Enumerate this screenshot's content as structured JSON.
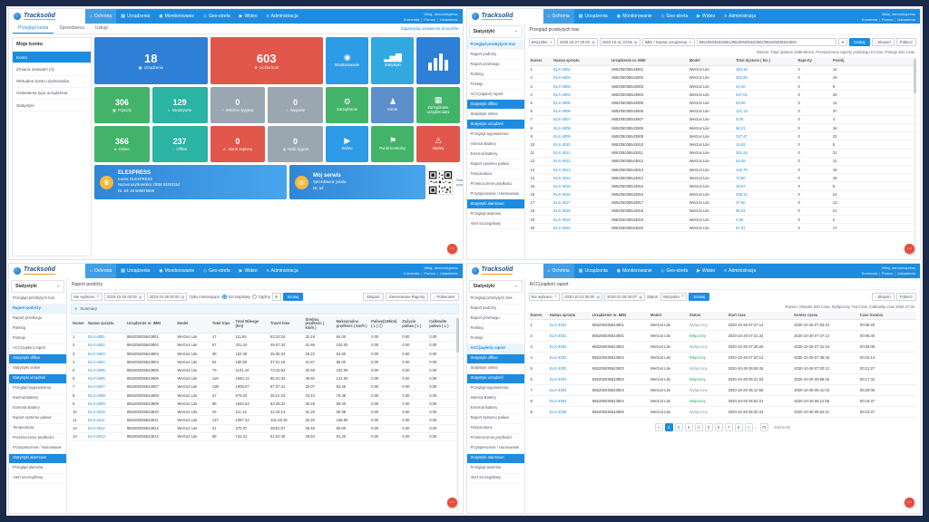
{
  "icons": {
    "caret": "▼",
    "calendar": "▦",
    "plus": "⊕",
    "download": "↓",
    "gear": "⚙",
    "chat": "⋯",
    "collapse": "∨",
    "service": "☏",
    "avatar": "♛",
    "ellipsis": "…",
    "prev": "«",
    "next": "»"
  },
  "chrome": {
    "logo": "Tracksolid",
    "nav": [
      {
        "name": "nav-ochrona",
        "icon": "⌂",
        "label": "Ochrona"
      },
      {
        "name": "nav-urzadzenia",
        "icon": "▦",
        "label": "Urządzenia"
      },
      {
        "name": "nav-monitorowanie",
        "icon": "◉",
        "label": "Monitorowanie"
      },
      {
        "name": "nav-geo-strefa",
        "icon": "◇",
        "label": "Geo-strefa"
      },
      {
        "name": "nav-wideo",
        "icon": "▶",
        "label": "Wideo"
      },
      {
        "name": "nav-administracja",
        "icon": "≡",
        "label": "Administracja"
      }
    ],
    "greeting": "Witaj, demoekspress",
    "user_links": [
      "Komenda",
      "Pomoc",
      "Ustawienia"
    ]
  },
  "dashboard": {
    "tabs": [
      "Przegląd konta",
      "Sprzedawca",
      "Usługi"
    ],
    "remember_link": "Zapamiętaj ustawienia domyślne",
    "sidebar_title": "Moje konto",
    "sidebar_items": [
      "Konto",
      "Zmiana ustawień (4)",
      "Wirtualne konto użytkownika",
      "Ustawienia typu urządzenia",
      "Statystyki"
    ],
    "big_stats": [
      {
        "value": "18",
        "label": "Urządzenia",
        "icon": "▣",
        "color": "#2e7fd6"
      },
      {
        "value": "603",
        "label": "Liczba kont",
        "icon": "♛",
        "color": "#e2574c"
      }
    ],
    "small_stats": [
      {
        "value": "306",
        "label": "Pojazdy",
        "icon": "▣",
        "color": "#43b36a"
      },
      {
        "value": "129",
        "label": "Nieaktywne",
        "icon": "◐",
        "color": "#2bb3a3"
      },
      {
        "value": "0",
        "label": "Wkrótce wygasa",
        "icon": "◔",
        "color": "#9aa7b0"
      },
      {
        "value": "0",
        "label": "Wygasłe",
        "icon": "○",
        "color": "#9aa7b0"
      },
      {
        "value": "366",
        "label": "Online",
        "icon": "●",
        "color": "#43b36a"
      },
      {
        "value": "237",
        "label": "Offline",
        "icon": "◌",
        "color": "#2bb3a3"
      },
      {
        "value": "0",
        "label": "Alarm zapłonu",
        "icon": "⚠",
        "color": "#e2574c"
      },
      {
        "value": "0",
        "label": "Niski sygnał",
        "icon": "◍",
        "color": "#9aa7b0"
      }
    ],
    "apps": [
      {
        "name": "app-monitorowanie",
        "label": "Monitorowanie",
        "icon": "◉",
        "color": "#2e9be6"
      },
      {
        "name": "app-statystyki",
        "label": "Statystyki",
        "icon": "▂▅▇",
        "color": "#31a8e0"
      },
      {
        "name": "app-wykresy",
        "label": "",
        "icon": "bars",
        "color": "#2e7fd6"
      },
      {
        "name": "app-zarzadzanie",
        "label": "Zarządzanie",
        "icon": "⚙",
        "color": "#43b36a"
      },
      {
        "name": "app-konto",
        "label": "Konto",
        "icon": "♟",
        "color": "#5c8fc9"
      },
      {
        "name": "app-zarzadzanie-urzadzeniami",
        "label": "Zarządzanie urządzeniami",
        "icon": "▦",
        "color": "#43b36a"
      },
      {
        "name": "app-wideo",
        "label": "Wideo",
        "icon": "▶",
        "color": "#2e9be6"
      },
      {
        "name": "app-punkt-kontrolny",
        "label": "Punkt kontrolny",
        "icon": "⚑",
        "color": "#43b36a"
      },
      {
        "name": "app-alarmy",
        "label": "Alarmy",
        "icon": "⚠",
        "color": "#e2574c"
      }
    ],
    "account": {
      "title": "ELEXPRESS",
      "lines": [
        "Konto: ELEXPRESS",
        "Nazwa użytkownika: DEM 52253154",
        "Nr. tel: 48 505875585"
      ],
      "service_title": "Mój serwis",
      "service_lines": [
        "Sprzedawca: jasola",
        "Nr. tel:"
      ],
      "qr_caption": "Skanuj kod QR w celu pobrania aplikacji"
    }
  },
  "stats_sidebar": {
    "title": "Statystyki",
    "items": [
      {
        "label": "Przegląd przebytych tras"
      },
      {
        "label": "Raport podróży"
      },
      {
        "label": "Raport przebiegu"
      },
      {
        "label": "Parking"
      },
      {
        "label": "Postoje"
      },
      {
        "label": "ACC(zapłon) raport"
      },
      {
        "label": "Statystyki offline",
        "type": "section"
      },
      {
        "label": "Statystyki online"
      },
      {
        "label": "Statystyki urządzeń",
        "type": "section"
      },
      {
        "label": "Przegląd wyposażenia"
      },
      {
        "label": "Internal Battery"
      },
      {
        "label": "External Battery"
      },
      {
        "label": "Raport systemu paliwa"
      },
      {
        "label": "Temperatura"
      },
      {
        "label": "Przekroczenie prędkości"
      },
      {
        "label": "Przyspieszenie / Hamowanie"
      },
      {
        "label": "Statystyki alarmowe",
        "type": "section"
      },
      {
        "label": "Przegląd alarmów"
      },
      {
        "label": "Alert szczegółowy"
      }
    ]
  },
  "mileage": {
    "title": "Przegląd przebytych tras",
    "filters": {
      "group": "Wszystko",
      "date_from": "2020-10-27 00:00",
      "date_to": "2020-10-31 23:59",
      "type": "IMEI / Nazwa urządzenia",
      "imei": "865205035543801/865205035543802/865205035543803",
      "search": "Szukaj"
    },
    "export": "Eksport",
    "download": "Pobierz",
    "summary": "Razem:   Total dystans 2486.59 km,   Przetworzone raporty przebiegu 0 Czas,   Postoje 931 Czas",
    "table": {
      "columns": [
        "Numer",
        "Nazwa sprzętu",
        "Urządzenie nr. IMEI",
        "Model",
        "Total dystans ( km )",
        "Raporty",
        "Postój"
      ],
      "link_cols": [
        1,
        4
      ],
      "rows": [
        [
          "1",
          "ELX-4001",
          "865205035543801",
          "WeGo4 Lite",
          "164.16",
          "0",
          "14"
        ],
        [
          "2",
          "ELX-4002",
          "865205035543802",
          "WeGo4 Lite",
          "302.60",
          "0",
          "19"
        ],
        [
          "3",
          "ELX-4003",
          "865205035543803",
          "WeGo4 Lite",
          "44.40",
          "0",
          "9"
        ],
        [
          "4",
          "ELX-4004",
          "865205035543804",
          "WeGo4 Lite",
          "537.01",
          "0",
          "28"
        ],
        [
          "5",
          "ELX-4005",
          "865205035543805",
          "WeGo4 Lite",
          "63.58",
          "0",
          "12"
        ],
        [
          "6",
          "ELX-4006",
          "865205035543806",
          "WeGo4 Lite",
          "121.13",
          "0",
          "37"
        ],
        [
          "7",
          "ELX-4007",
          "865205035543807",
          "WeGo4 Lite",
          "9.06",
          "0",
          "4"
        ],
        [
          "8",
          "ELX-4008",
          "865205035543808",
          "WeGo4 Lite",
          "88.21",
          "0",
          "16"
        ],
        [
          "9",
          "ELX-4009",
          "865205035543809",
          "WeGo4 Lite",
          "237.47",
          "0",
          "22"
        ],
        [
          "10",
          "ELX-4010",
          "865205035543810",
          "WeGo4 Lite",
          "12.92",
          "0",
          "8"
        ],
        [
          "11",
          "ELX-4011",
          "865205035543811",
          "WeGo4 Lite",
          "301.44",
          "0",
          "31"
        ],
        [
          "12",
          "ELX-4012",
          "865205035543812",
          "WeGo4 Lite",
          "54.35",
          "0",
          "11"
        ],
        [
          "13",
          "ELX-4013",
          "865205035543813",
          "WeGo4 Lite",
          "146.70",
          "0",
          "18"
        ],
        [
          "14",
          "ELX-4014",
          "865205035543814",
          "WeGo4 Lite",
          "73.90",
          "0",
          "15"
        ],
        [
          "15",
          "ELX-4015",
          "865205035543815",
          "WeGo4 Lite",
          "19.67",
          "0",
          "6"
        ],
        [
          "16",
          "ELX-4016",
          "865205035543816",
          "WeGo4 Lite",
          "208.12",
          "0",
          "24"
        ],
        [
          "17",
          "ELX-4017",
          "865205035543817",
          "WeGo4 Lite",
          "37.50",
          "0",
          "13"
        ],
        [
          "18",
          "ELX-4018",
          "865205035543818",
          "WeGo4 Lite",
          "96.04",
          "0",
          "21"
        ],
        [
          "19",
          "ELX-4019",
          "865205035543819",
          "WeGo4 Lite",
          "0.86",
          "0",
          "2"
        ],
        [
          "20",
          "ELX-4020",
          "865205035543820",
          "WeGo4 Lite",
          "67.37",
          "0",
          "17"
        ]
      ]
    }
  },
  "trip": {
    "title": "Raport podróży",
    "filters": {
      "device": "Nie wybrano",
      "date_from": "2020-10-25 00:00",
      "date_to": "2020-10-28 00:00",
      "only_label": "Tylko interesujące:",
      "radio1": "Szczegółowy",
      "radio2": "Ogólny",
      "search": "Szukaj"
    },
    "buttons": [
      "Eksport",
      "Generowane Raporty",
      "Pobieranie"
    ],
    "section": "Summary",
    "table": {
      "columns": [
        "Numer",
        "Nazwa sprzętu",
        "Urządzenie nr. IMEI",
        "Model",
        "Total trips",
        "Total Mileage (km)",
        "Travel time",
        "Średnia prędkość ( km/h )",
        "Maksymalna prędkość ( km/h )",
        "Paliwo(100km) ( L ) ⓘ",
        "Zużycie paliwa ( L )",
        "Całkowite paliwo ( L )"
      ],
      "link_cols": [
        1
      ],
      "rows": [
        [
          "1",
          "ELX-4001",
          "865205035543801",
          "WeGo4 Lite",
          "17",
          "111.84",
          "63:32:24",
          "32.19",
          "84.00",
          "0.00",
          "0.00",
          "0.00"
        ],
        [
          "2",
          "ELX-4002",
          "865205035543802",
          "WeGo4 Lite",
          "67",
          "431.42",
          "49:47:42",
          "41.86",
          "102.00",
          "0.00",
          "0.00",
          "0.00"
        ],
        [
          "3",
          "ELX-4003",
          "865205035543803",
          "WeGo4 Lite",
          "39",
          "152.06",
          "25:35:34",
          "28.22",
          "64.50",
          "0.00",
          "0.00",
          "0.00"
        ],
        [
          "4",
          "ELX-4004",
          "865205035543804",
          "WeGo4 Lite",
          "54",
          "180.50",
          "37:31:16",
          "31.67",
          "86.00",
          "0.00",
          "0.00",
          "0.00"
        ],
        [
          "5",
          "ELX-4005",
          "865205035543805",
          "WeGo4 Lite",
          "79",
          "1101.44",
          "73:16:53",
          "30.59",
          "102.09",
          "0.00",
          "0.00",
          "0.00"
        ],
        [
          "6",
          "ELX-4006",
          "865205035543806",
          "WeGo4 Lite",
          "119",
          "1560.14",
          "85:31:33",
          "35.92",
          "121.00",
          "0.00",
          "0.00",
          "0.00"
        ],
        [
          "7",
          "ELX-4007",
          "865205035543807",
          "WeGo4 Lite",
          "138",
          "1908.07",
          "57:37:41",
          "33.07",
          "93.26",
          "0.00",
          "0.00",
          "0.00"
        ],
        [
          "8",
          "ELX-4008",
          "865205035543808",
          "WeGo4 Lite",
          "47",
          "679.02",
          "25:21:23",
          "23.42",
          "79.48",
          "0.00",
          "0.00",
          "0.00"
        ],
        [
          "9",
          "ELX-4009",
          "865205035543809",
          "WeGo4 Lite",
          "88",
          "1940.54",
          "83:28:32",
          "30.28",
          "96.00",
          "0.00",
          "0.00",
          "0.00"
        ],
        [
          "10",
          "ELX-4010",
          "865205035543810",
          "WeGo4 Lite",
          "26",
          "111.13",
          "42:18:14",
          "31.20",
          "55.98",
          "0.00",
          "0.00",
          "0.00"
        ],
        [
          "11",
          "ELX-4011",
          "865205035543811",
          "WeGo4 Lite",
          "147",
          "1097.22",
          "101:28:18",
          "32.20",
          "108.90",
          "0.00",
          "0.00",
          "0.00"
        ],
        [
          "12",
          "ELX-4012",
          "865205035543812",
          "WeGo4 Lite",
          "41",
          "270.07",
          "28:51:07",
          "26.46",
          "80.00",
          "0.00",
          "0.00",
          "0.00"
        ],
        [
          "13",
          "ELX-4013",
          "865205035543813",
          "WeGo4 Lite",
          "58",
          "743.31",
          "51:02:45",
          "29.84",
          "91.20",
          "0.00",
          "0.00",
          "0.00"
        ]
      ]
    }
  },
  "acc": {
    "title": "ACC(zapłon) raport",
    "filters": {
      "device": "Nie wybrano",
      "date_from": "2020-10-23 00:00",
      "date_to": "2020-10-28 00:07",
      "status_label": "Status:",
      "status": "Wszystko",
      "search": "Szukaj"
    },
    "export": "Eksport",
    "download": "Pobierz",
    "summary": "Razem:   Otwarte 829 Czas,   Wyłączony 744 Czas,   Całkowity czas 2662:27:33",
    "table": {
      "columns": [
        "Numer",
        "Nazwa sprzętu",
        "Urządzenie nr. IMEI",
        "Model",
        "Status",
        "Start czas",
        "Koniec czasu",
        "Czas trwania"
      ],
      "link_cols": [
        1
      ],
      "rows": [
        [
          "1",
          "ELX-4001",
          "865205035543801",
          "WeGo4 Lite",
          "Wyłączony",
          "2020-10-28 07:47:14",
          "2020-10-28 07:53:34",
          "00:06:20"
        ],
        [
          "2",
          "ELX-4001",
          "865205035543801",
          "WeGo4 Lite",
          "Włączony",
          "2020-10-28 07:41:34",
          "2020-10-28 07:47:14",
          "00:05:40"
        ],
        [
          "3",
          "ELX-4002",
          "865205035543802",
          "WeGo4 Lite",
          "Wyłączony",
          "2020-10-28 07:36:26",
          "2020-10-28 07:41:34",
          "00:05:08"
        ],
        [
          "4",
          "ELX-4002",
          "865205035543802",
          "WeGo4 Lite",
          "Włączony",
          "2020-10-28 07:20:12",
          "2020-10-28 07:36:26",
          "00:16:14"
        ],
        [
          "5",
          "ELX-4003",
          "865205035543803",
          "WeGo4 Lite",
          "Wyłączony",
          "2020-10-28 06:58:45",
          "2020-10-28 07:20:12",
          "00:21:27"
        ],
        [
          "6",
          "ELX-4003",
          "865205035543803",
          "WeGo4 Lite",
          "Włączony",
          "2020-10-28 06:41:03",
          "2020-10-28 06:58:45",
          "00:17:42"
        ],
        [
          "7",
          "ELX-4004",
          "865205035543804",
          "WeGo4 Lite",
          "Wyłączony",
          "2020-10-28 06:12:58",
          "2020-10-28 06:41:03",
          "00:28:05"
        ],
        [
          "8",
          "ELX-4004",
          "865205035543804",
          "WeGo4 Lite",
          "Włączony",
          "2020-10-28 05:54:21",
          "2020-10-28 06:12:58",
          "00:18:37"
        ],
        [
          "9",
          "ELX-4005",
          "865205035543805",
          "WeGo4 Lite",
          "Wyłączony",
          "2020-10-28 05:30:44",
          "2020-10-28 05:54:21",
          "00:23:37"
        ]
      ]
    },
    "pagination": {
      "pages": [
        "1",
        "2",
        "3",
        "4",
        "5",
        "6",
        "7",
        "8"
      ],
      "last": "75",
      "total": "Strona 80"
    }
  }
}
